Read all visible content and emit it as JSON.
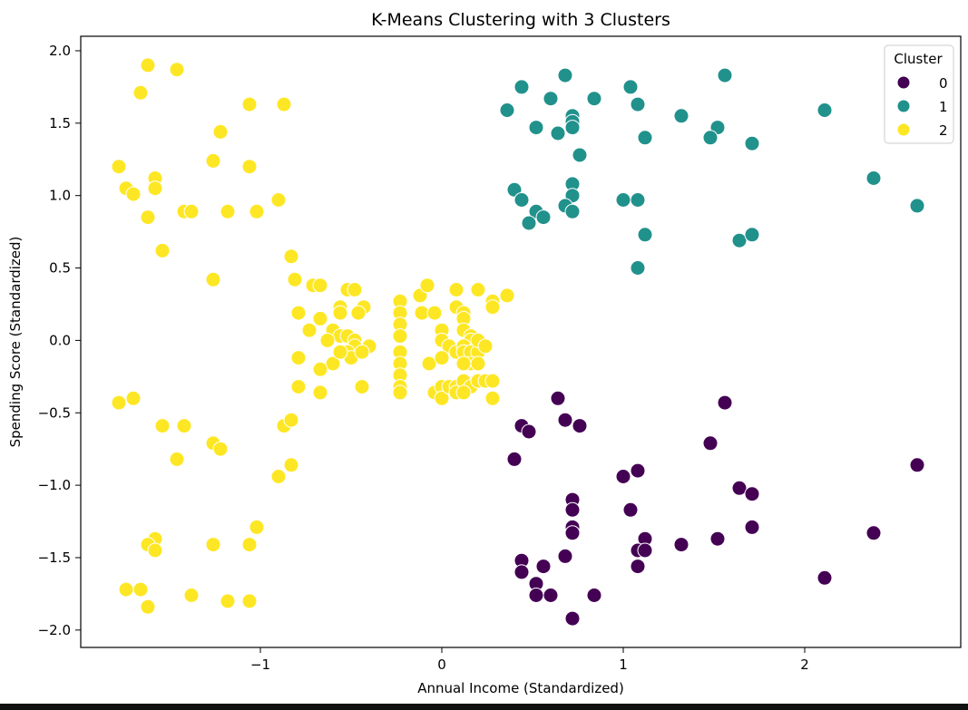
{
  "chart_data": {
    "type": "scatter",
    "title": "K-Means Clustering with 3 Clusters",
    "xlabel": "Annual Income (Standardized)",
    "ylabel": "Spending Score (Standardized)",
    "xlim": [
      -1.99,
      2.86
    ],
    "ylim": [
      -2.12,
      2.1
    ],
    "xticks": [
      -1,
      0,
      1,
      2
    ],
    "yticks": [
      -2.0,
      -1.5,
      -1.0,
      -0.5,
      0.0,
      0.5,
      1.0,
      1.5,
      2.0
    ],
    "grid": false,
    "legend": {
      "title": "Cluster",
      "placement": "top-right"
    },
    "series": [
      {
        "name": "0",
        "color": "#440154",
        "points": [
          [
            0.64,
            -0.4
          ],
          [
            0.44,
            -0.59
          ],
          [
            0.48,
            -0.63
          ],
          [
            0.68,
            -0.55
          ],
          [
            0.76,
            -0.59
          ],
          [
            0.4,
            -0.82
          ],
          [
            1.56,
            -0.43
          ],
          [
            1.48,
            -0.71
          ],
          [
            1.0,
            -0.94
          ],
          [
            1.08,
            -0.9
          ],
          [
            2.62,
            -0.86
          ],
          [
            1.64,
            -1.02
          ],
          [
            1.71,
            -1.06
          ],
          [
            0.72,
            -1.1
          ],
          [
            0.72,
            -1.17
          ],
          [
            1.04,
            -1.17
          ],
          [
            0.72,
            -1.29
          ],
          [
            0.72,
            -1.33
          ],
          [
            1.71,
            -1.29
          ],
          [
            2.38,
            -1.33
          ],
          [
            1.52,
            -1.37
          ],
          [
            1.12,
            -1.37
          ],
          [
            1.32,
            -1.41
          ],
          [
            1.08,
            -1.45
          ],
          [
            1.12,
            -1.45
          ],
          [
            0.68,
            -1.49
          ],
          [
            0.44,
            -1.52
          ],
          [
            0.56,
            -1.56
          ],
          [
            1.08,
            -1.56
          ],
          [
            0.44,
            -1.6
          ],
          [
            2.11,
            -1.64
          ],
          [
            0.52,
            -1.68
          ],
          [
            0.52,
            -1.76
          ],
          [
            0.6,
            -1.76
          ],
          [
            0.84,
            -1.76
          ],
          [
            0.72,
            -1.92
          ]
        ]
      },
      {
        "name": "1",
        "color": "#21918c",
        "points": [
          [
            0.68,
            1.83
          ],
          [
            1.56,
            1.83
          ],
          [
            0.44,
            1.75
          ],
          [
            1.04,
            1.75
          ],
          [
            0.6,
            1.67
          ],
          [
            0.84,
            1.67
          ],
          [
            0.36,
            1.59
          ],
          [
            1.08,
            1.63
          ],
          [
            0.72,
            1.55
          ],
          [
            1.32,
            1.55
          ],
          [
            2.11,
            1.59
          ],
          [
            0.72,
            1.51
          ],
          [
            0.52,
            1.47
          ],
          [
            0.72,
            1.47
          ],
          [
            1.52,
            1.47
          ],
          [
            0.64,
            1.43
          ],
          [
            1.12,
            1.4
          ],
          [
            1.48,
            1.4
          ],
          [
            1.71,
            1.36
          ],
          [
            0.76,
            1.28
          ],
          [
            2.38,
            1.12
          ],
          [
            0.72,
            1.08
          ],
          [
            0.4,
            1.04
          ],
          [
            0.72,
            1.0
          ],
          [
            0.44,
            0.97
          ],
          [
            1.0,
            0.97
          ],
          [
            1.08,
            0.97
          ],
          [
            0.68,
            0.93
          ],
          [
            2.62,
            0.93
          ],
          [
            0.52,
            0.89
          ],
          [
            0.72,
            0.89
          ],
          [
            0.56,
            0.85
          ],
          [
            0.48,
            0.81
          ],
          [
            1.12,
            0.73
          ],
          [
            1.64,
            0.69
          ],
          [
            1.71,
            0.73
          ],
          [
            1.08,
            0.5
          ]
        ]
      },
      {
        "name": "2",
        "color": "#fde725",
        "points": [
          [
            -1.62,
            1.9
          ],
          [
            -1.46,
            1.87
          ],
          [
            -1.66,
            1.71
          ],
          [
            -1.06,
            1.63
          ],
          [
            -0.87,
            1.63
          ],
          [
            -1.22,
            1.44
          ],
          [
            -1.26,
            1.24
          ],
          [
            -1.78,
            1.2
          ],
          [
            -1.06,
            1.2
          ],
          [
            -1.58,
            1.12
          ],
          [
            -1.74,
            1.05
          ],
          [
            -1.58,
            1.05
          ],
          [
            -1.7,
            1.01
          ],
          [
            -0.9,
            0.97
          ],
          [
            -1.42,
            0.89
          ],
          [
            -1.38,
            0.89
          ],
          [
            -1.18,
            0.89
          ],
          [
            -1.02,
            0.89
          ],
          [
            -1.62,
            0.85
          ],
          [
            -1.54,
            0.62
          ],
          [
            -0.83,
            0.58
          ],
          [
            -1.26,
            0.42
          ],
          [
            -0.81,
            0.42
          ],
          [
            -0.71,
            0.38
          ],
          [
            -0.67,
            0.38
          ],
          [
            -0.52,
            0.35
          ],
          [
            -0.48,
            0.35
          ],
          [
            -0.56,
            0.23
          ],
          [
            -0.43,
            0.23
          ],
          [
            -0.79,
            0.19
          ],
          [
            -0.67,
            0.15
          ],
          [
            -0.56,
            0.19
          ],
          [
            -0.46,
            0.19
          ],
          [
            -0.73,
            0.07
          ],
          [
            -0.6,
            0.07
          ],
          [
            -0.56,
            0.03
          ],
          [
            -0.52,
            0.03
          ],
          [
            -0.48,
            0.0
          ],
          [
            -0.63,
            0.0
          ],
          [
            -0.48,
            -0.04
          ],
          [
            -0.52,
            -0.08
          ],
          [
            -0.79,
            -0.12
          ],
          [
            -0.6,
            -0.16
          ],
          [
            -0.67,
            -0.2
          ],
          [
            -0.5,
            -0.12
          ],
          [
            -0.4,
            -0.04
          ],
          [
            -0.56,
            -0.08
          ],
          [
            -0.44,
            -0.08
          ],
          [
            -0.79,
            -0.32
          ],
          [
            -0.67,
            -0.36
          ],
          [
            -0.44,
            -0.32
          ],
          [
            -0.23,
            0.27
          ],
          [
            -0.23,
            0.19
          ],
          [
            -0.23,
            0.11
          ],
          [
            -0.23,
            0.03
          ],
          [
            -0.23,
            -0.08
          ],
          [
            -0.23,
            -0.16
          ],
          [
            -0.23,
            -0.24
          ],
          [
            -0.23,
            -0.32
          ],
          [
            -0.23,
            -0.36
          ],
          [
            -0.12,
            0.31
          ],
          [
            -0.08,
            0.38
          ],
          [
            -0.11,
            0.19
          ],
          [
            -0.04,
            0.19
          ],
          [
            0.0,
            0.07
          ],
          [
            0.0,
            0.0
          ],
          [
            0.04,
            -0.04
          ],
          [
            0.08,
            -0.08
          ],
          [
            -0.07,
            -0.16
          ],
          [
            0.0,
            -0.12
          ],
          [
            -0.04,
            -0.36
          ],
          [
            0.0,
            -0.32
          ],
          [
            0.0,
            -0.4
          ],
          [
            0.04,
            -0.32
          ],
          [
            0.08,
            -0.32
          ],
          [
            0.08,
            -0.36
          ],
          [
            0.08,
            0.35
          ],
          [
            0.08,
            0.23
          ],
          [
            0.12,
            0.19
          ],
          [
            0.12,
            0.15
          ],
          [
            0.12,
            0.07
          ],
          [
            0.16,
            0.03
          ],
          [
            0.16,
            0.0
          ],
          [
            0.12,
            -0.04
          ],
          [
            0.12,
            -0.08
          ],
          [
            0.16,
            -0.08
          ],
          [
            0.2,
            -0.08
          ],
          [
            0.16,
            -0.16
          ],
          [
            0.2,
            -0.16
          ],
          [
            0.12,
            -0.16
          ],
          [
            0.12,
            -0.28
          ],
          [
            0.16,
            -0.32
          ],
          [
            0.2,
            -0.28
          ],
          [
            0.24,
            -0.28
          ],
          [
            0.12,
            -0.36
          ],
          [
            0.2,
            0.35
          ],
          [
            0.2,
            0.0
          ],
          [
            0.24,
            -0.04
          ],
          [
            0.28,
            0.27
          ],
          [
            0.28,
            0.23
          ],
          [
            0.36,
            0.31
          ],
          [
            0.28,
            -0.28
          ],
          [
            0.28,
            -0.4
          ],
          [
            -1.78,
            -0.43
          ],
          [
            -1.7,
            -0.4
          ],
          [
            -1.54,
            -0.59
          ],
          [
            -1.42,
            -0.59
          ],
          [
            -1.46,
            -0.82
          ],
          [
            -1.26,
            -0.71
          ],
          [
            -1.22,
            -0.75
          ],
          [
            -0.87,
            -0.59
          ],
          [
            -0.83,
            -0.55
          ],
          [
            -0.83,
            -0.86
          ],
          [
            -0.9,
            -0.94
          ],
          [
            -1.02,
            -1.29
          ],
          [
            -1.58,
            -1.37
          ],
          [
            -1.62,
            -1.41
          ],
          [
            -1.26,
            -1.41
          ],
          [
            -1.06,
            -1.41
          ],
          [
            -1.58,
            -1.45
          ],
          [
            -1.74,
            -1.72
          ],
          [
            -1.66,
            -1.72
          ],
          [
            -1.38,
            -1.76
          ],
          [
            -1.18,
            -1.8
          ],
          [
            -1.06,
            -1.8
          ],
          [
            -1.62,
            -1.84
          ]
        ]
      }
    ]
  }
}
